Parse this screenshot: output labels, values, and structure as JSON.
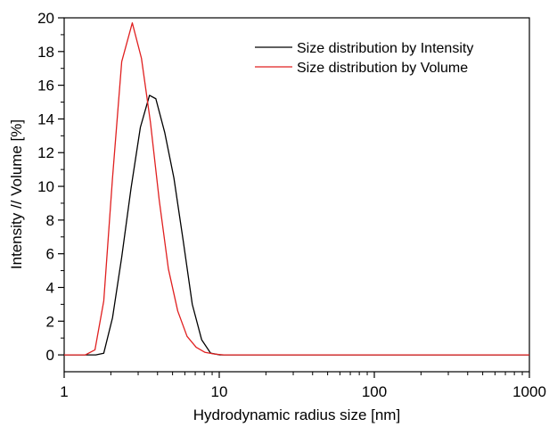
{
  "chart_data": {
    "type": "line",
    "xlabel": "Hydrodynamic radius size [nm]",
    "ylabel": "Intensity // Volume [%]",
    "x_scale": "log",
    "xlim": [
      1,
      1000
    ],
    "ylim": [
      -1,
      20
    ],
    "x_ticks": [
      1,
      10,
      100,
      1000
    ],
    "x_tick_labels": [
      "1",
      "10",
      "100",
      "1000"
    ],
    "y_ticks": [
      0,
      2,
      4,
      6,
      8,
      10,
      12,
      14,
      16,
      18,
      20
    ],
    "y_tick_labels": [
      "0",
      "2",
      "4",
      "6",
      "8",
      "10",
      "12",
      "14",
      "16",
      "18",
      "20"
    ],
    "grid": false,
    "legend_position": "top-right",
    "series": [
      {
        "name": "Size distribution by Intensity",
        "color": "#000000",
        "x": [
          1.0,
          1.2,
          1.4,
          1.6,
          1.8,
          2.05,
          2.35,
          2.7,
          3.1,
          3.55,
          3.9,
          4.45,
          5.1,
          5.85,
          6.7,
          7.7,
          8.8,
          10.1,
          11.6,
          1000
        ],
        "y": [
          0,
          0,
          0,
          0,
          0.1,
          2.2,
          5.8,
          9.9,
          13.5,
          15.4,
          15.2,
          13.2,
          10.5,
          6.8,
          3.0,
          0.9,
          0.1,
          0,
          0,
          0
        ]
      },
      {
        "name": "Size distribution by Volume",
        "color": "#e02020",
        "x": [
          1.0,
          1.2,
          1.37,
          1.58,
          1.8,
          2.05,
          2.35,
          2.75,
          3.15,
          3.6,
          4.1,
          4.7,
          5.4,
          6.2,
          7.1,
          8.1,
          9.3,
          10.7,
          1000
        ],
        "y": [
          0,
          0,
          0,
          0.3,
          3.2,
          10.5,
          17.4,
          19.7,
          17.6,
          13.8,
          9.2,
          5.1,
          2.6,
          1.1,
          0.45,
          0.15,
          0.05,
          0,
          0
        ]
      }
    ]
  }
}
